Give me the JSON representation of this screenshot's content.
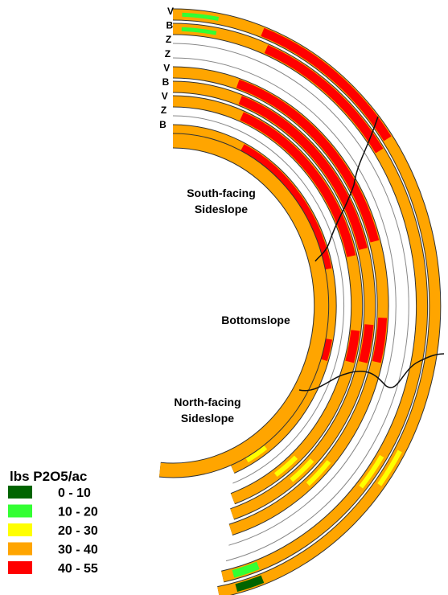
{
  "ring_labels": [
    "V",
    "B",
    "Z",
    "Z",
    "V",
    "B",
    "V",
    "Z",
    "B"
  ],
  "regions": [
    {
      "lines": [
        "South-facing",
        "Sideslope"
      ]
    },
    {
      "lines": [
        "Bottomslope"
      ]
    },
    {
      "lines": [
        "North-facing",
        "Sideslope"
      ]
    }
  ],
  "legend": {
    "title": "lbs P2O5/ac",
    "items": [
      {
        "label": "0 - 10",
        "color": "#006400"
      },
      {
        "label": "10 - 20",
        "color": "#33ff33"
      },
      {
        "label": "20 - 30",
        "color": "#ffff00"
      },
      {
        "label": "30 - 40",
        "color": "#ffa500"
      },
      {
        "label": "40 - 55",
        "color": "#ff0000"
      }
    ]
  }
}
